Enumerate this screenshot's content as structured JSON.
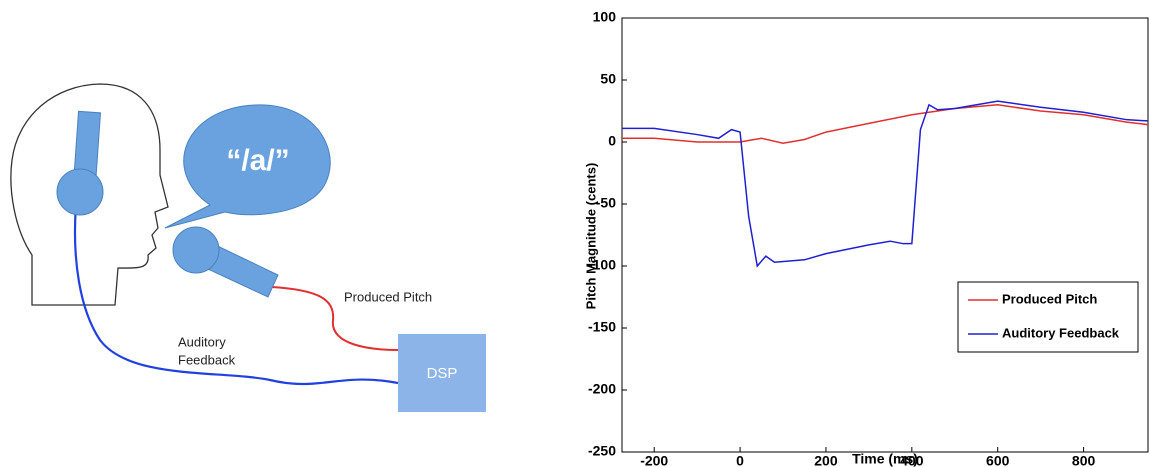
{
  "diagram": {
    "bubble_text": "“/a/”",
    "produced_label": "Produced Pitch",
    "auditory_label": [
      "Auditory",
      "Feedback"
    ],
    "box_label": "DSP"
  },
  "chart_data": {
    "type": "line",
    "xlabel": "Time (ms)",
    "ylabel": "Pitch Magnitude (cents)",
    "xlim": [
      -275,
      950
    ],
    "ylim": [
      -250,
      100
    ],
    "xticks": [
      -200,
      0,
      200,
      400,
      600,
      800
    ],
    "yticks": [
      -250,
      -200,
      -150,
      -100,
      -50,
      0,
      50,
      100
    ],
    "legend": "lower right",
    "series": [
      {
        "name": "Produced Pitch",
        "color": "#e03030",
        "x": [
          -275,
          -200,
          -100,
          0,
          50,
          100,
          150,
          200,
          300,
          400,
          500,
          600,
          700,
          800,
          900,
          950
        ],
        "values": [
          3,
          3,
          0,
          0,
          3,
          -1,
          2,
          8,
          15,
          22,
          27,
          30,
          25,
          22,
          16,
          14
        ]
      },
      {
        "name": "Auditory Feedback",
        "color": "#2020d0",
        "x": [
          -275,
          -200,
          -100,
          -50,
          -20,
          0,
          20,
          40,
          60,
          80,
          150,
          200,
          300,
          350,
          380,
          400,
          420,
          440,
          460,
          500,
          600,
          700,
          800,
          900,
          950
        ],
        "values": [
          11,
          11,
          6,
          3,
          10,
          8,
          -60,
          -100,
          -92,
          -97,
          -95,
          -90,
          -83,
          -80,
          -82,
          -82,
          10,
          30,
          26,
          27,
          33,
          28,
          24,
          18,
          17
        ]
      }
    ]
  }
}
